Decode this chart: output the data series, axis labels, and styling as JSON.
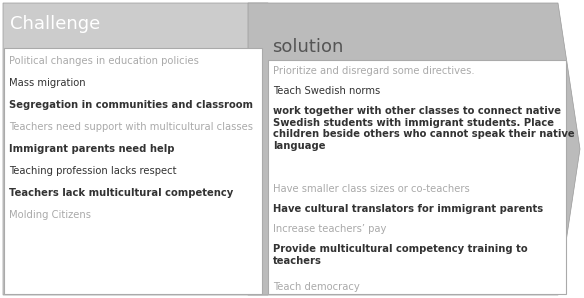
{
  "challenge_title": "Challenge",
  "solution_title": "solution",
  "challenge_items": [
    {
      "text": "Political changes in education policies",
      "bold": false,
      "gray": true
    },
    {
      "text": "Mass migration",
      "bold": false,
      "gray": false
    },
    {
      "text": "Segregation in communities and classroom",
      "bold": true,
      "gray": false
    },
    {
      "text": "Teachers need support with multicultural classes",
      "bold": false,
      "gray": true
    },
    {
      "text": "Immigrant parents need help",
      "bold": true,
      "gray": false
    },
    {
      "text": "Teaching profession lacks respect",
      "bold": false,
      "gray": false
    },
    {
      "text": "Teachers lack multicultural competency",
      "bold": true,
      "gray": false
    },
    {
      "text": "Molding Citizens",
      "bold": false,
      "gray": true
    }
  ],
  "solution_items": [
    {
      "text": "Prioritize and disregard some directives.",
      "bold": false,
      "gray": true
    },
    {
      "text": "Teach Swedish norms",
      "bold": false,
      "gray": false
    },
    {
      "text": "work together with other classes to connect native\nSwedish students with immigrant students. Place\nchildren beside others who cannot speak their native\nlanguage",
      "bold": true,
      "gray": false
    },
    {
      "text": "Have smaller class sizes or co-teachers",
      "bold": false,
      "gray": true
    },
    {
      "text": "Have cultural translators for immigrant parents",
      "bold": true,
      "gray": false
    },
    {
      "text": "Increase teachers’ pay",
      "bold": false,
      "gray": true
    },
    {
      "text": "Provide multicultural competency training to\nteachers",
      "bold": true,
      "gray": false
    },
    {
      "text": "Teach democracy",
      "bold": false,
      "gray": true
    }
  ],
  "fig_width": 5.84,
  "fig_height": 2.98,
  "dpi": 100,
  "arrow_fill_challenge": "#cccccc",
  "arrow_fill_solution": "#bbbbbb",
  "arrow_edge": "#999999",
  "white_box_edge": "#aaaaaa",
  "challenge_title_color": "#ffffff",
  "solution_title_color": "#555555",
  "normal_text_color": "#333333",
  "gray_text_color": "#aaaaaa",
  "bg_color": "#ffffff"
}
